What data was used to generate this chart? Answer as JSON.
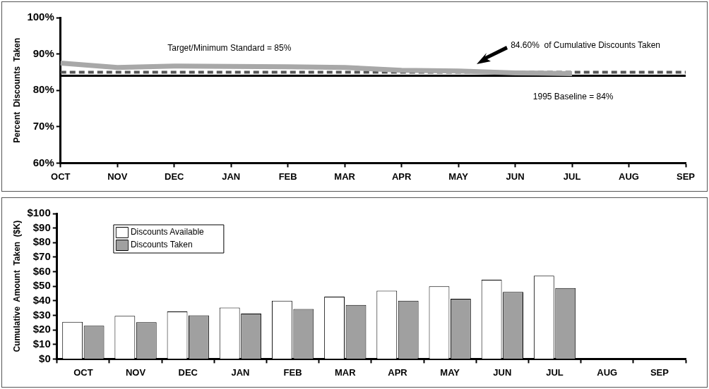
{
  "chart_data": [
    {
      "type": "line",
      "categories": [
        "OCT",
        "NOV",
        "DEC",
        "JAN",
        "FEB",
        "MAR",
        "APR",
        "MAY",
        "JUN",
        "JUL",
        "AUG",
        "SEP"
      ],
      "series": [
        {
          "color": "#a8a8a8",
          "values": [
            87.5,
            86.3,
            86.7,
            86.6,
            86.5,
            86.3,
            85.5,
            85.3,
            84.8,
            84.6,
            null,
            null
          ]
        }
      ],
      "ylabel": "Percent  Discounts  Taken",
      "ylim": [
        60,
        100
      ],
      "yticks": [
        {
          "value": 60,
          "label": "60%"
        },
        {
          "value": 70,
          "label": "70%"
        },
        {
          "value": 80,
          "label": "80%"
        },
        {
          "value": 90,
          "label": "90%"
        },
        {
          "value": 100,
          "label": "100%"
        }
      ],
      "ref_lines": [
        {
          "axis": "y",
          "value": 85,
          "label": "Target/Minimum Standard = 85%",
          "color": "#555555",
          "line_style": "dashed"
        },
        {
          "axis": "y",
          "value": 84,
          "label": "1995 Baseline = 84%",
          "color": "#000000",
          "line_style": "solid"
        }
      ],
      "annotations": [
        "84.60%  of Cumulative Discounts Taken"
      ],
      "grid": false,
      "legend": false,
      "marker": "none"
    },
    {
      "type": "bar",
      "categories": [
        "OCT",
        "NOV",
        "DEC",
        "JAN",
        "FEB",
        "MAR",
        "APR",
        "MAY",
        "JUN",
        "JUL",
        "AUG",
        "SEP"
      ],
      "series": [
        {
          "name": "Discounts Available",
          "color": "#ffffff",
          "values": [
            25.5,
            29.6,
            32.6,
            35.3,
            40,
            42.8,
            47,
            50,
            54.5,
            57.2,
            null,
            null
          ]
        },
        {
          "name": "Discounts Taken",
          "color": "#a0a0a0",
          "values": [
            22.8,
            25.3,
            30,
            31.2,
            34.4,
            37.1,
            40,
            41.4,
            46.1,
            48.8,
            null,
            null
          ]
        }
      ],
      "ylabel": "Cumulative  Amount  Taken  ($K)",
      "ylim": [
        0,
        100
      ],
      "yticks": [
        {
          "value": 0,
          "label": "$0"
        },
        {
          "value": 10,
          "label": "$10"
        },
        {
          "value": 20,
          "label": "$20"
        },
        {
          "value": 30,
          "label": "$30"
        },
        {
          "value": 40,
          "label": "$40"
        },
        {
          "value": 50,
          "label": "$50"
        },
        {
          "value": 60,
          "label": "$60"
        },
        {
          "value": 70,
          "label": "$70"
        },
        {
          "value": 80,
          "label": "$80"
        },
        {
          "value": 90,
          "label": "$90"
        },
        {
          "value": 100,
          "label": "$100"
        }
      ],
      "grid": false,
      "legend": "top left"
    }
  ]
}
